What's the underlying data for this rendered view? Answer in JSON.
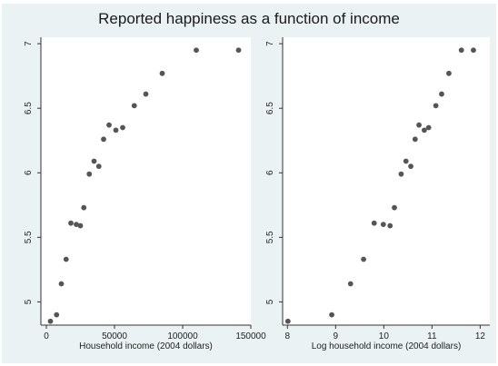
{
  "title": "Reported happiness as a function of income",
  "chart_data": [
    {
      "type": "scatter",
      "xlabel": "Household income (2004 dollars)",
      "ylabel": "",
      "xlim": [
        -4000,
        150000
      ],
      "ylim": [
        4.82,
        7.05
      ],
      "xticks": [
        0,
        50000,
        100000,
        150000
      ],
      "xtick_labels": [
        "0",
        "50000",
        "100000",
        "150000"
      ],
      "yticks": [
        5,
        5.5,
        6,
        6.5,
        7
      ],
      "ytick_labels": [
        "5",
        "5.5",
        "6",
        "6.5",
        "7"
      ],
      "grid": false,
      "point_color": "#555555",
      "x": [
        3000,
        7500,
        11000,
        14500,
        18000,
        22000,
        25000,
        27500,
        31500,
        35000,
        38500,
        42000,
        46000,
        51000,
        56000,
        64500,
        73000,
        85000,
        110000,
        141000
      ],
      "y": [
        4.85,
        4.9,
        5.14,
        5.33,
        5.61,
        5.6,
        5.59,
        5.73,
        5.99,
        6.09,
        6.05,
        6.26,
        6.37,
        6.33,
        6.35,
        6.52,
        6.61,
        6.77,
        6.95,
        6.95
      ]
    },
    {
      "type": "scatter",
      "xlabel": "Log household income (2004 dollars)",
      "ylabel": "",
      "xlim": [
        7.9,
        12.2
      ],
      "ylim": [
        4.82,
        7.05
      ],
      "xticks": [
        8,
        9,
        10,
        11,
        12
      ],
      "xtick_labels": [
        "8",
        "9",
        "10",
        "11",
        "12"
      ],
      "yticks": [
        5,
        5.5,
        6,
        6.5,
        7
      ],
      "ytick_labels": [
        "5",
        "5.5",
        "6",
        "6.5",
        "7"
      ],
      "grid": false,
      "point_color": "#555555",
      "x": [
        8.01,
        8.92,
        9.31,
        9.58,
        9.8,
        9.99,
        10.13,
        10.22,
        10.36,
        10.46,
        10.56,
        10.65,
        10.73,
        10.84,
        10.93,
        11.08,
        11.2,
        11.35,
        11.61,
        11.86
      ],
      "y": [
        4.85,
        4.9,
        5.14,
        5.33,
        5.61,
        5.6,
        5.59,
        5.73,
        5.99,
        6.09,
        6.05,
        6.26,
        6.37,
        6.33,
        6.35,
        6.52,
        6.61,
        6.77,
        6.95,
        6.95
      ]
    }
  ]
}
